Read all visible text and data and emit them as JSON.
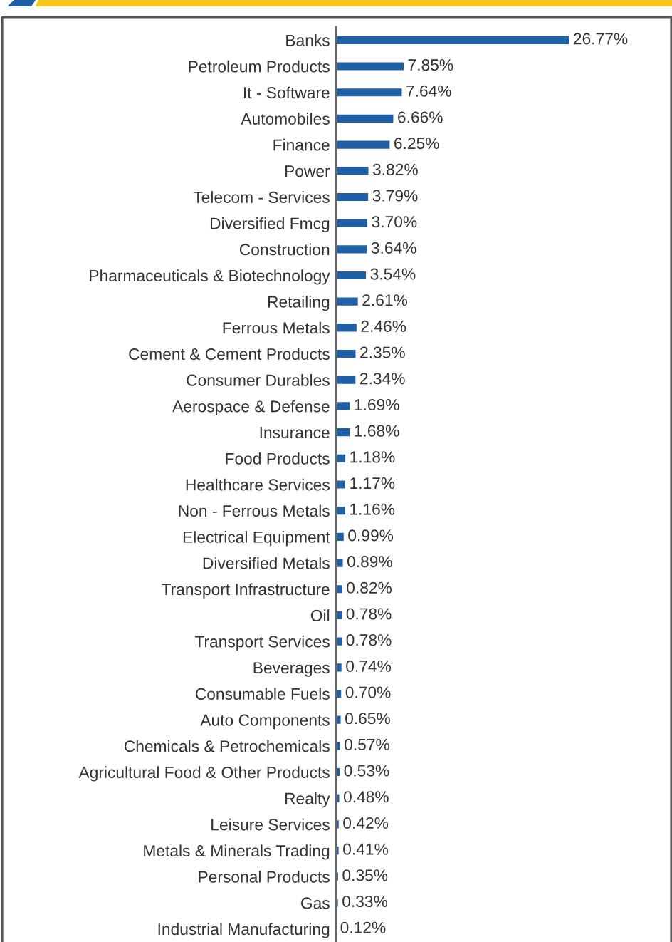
{
  "chart_data": {
    "type": "bar",
    "orientation": "horizontal",
    "color": "#1f5fa6",
    "tick_labels": "y",
    "categories": [
      "Banks",
      "Petroleum Products",
      "It - Software",
      "Automobiles",
      "Finance",
      "Power",
      "Telecom - Services",
      "Diversified Fmcg",
      "Construction",
      "Pharmaceuticals & Biotechnology",
      "Retailing",
      "Ferrous Metals",
      "Cement & Cement Products",
      "Consumer Durables",
      "Aerospace & Defense",
      "Insurance",
      "Food Products",
      "Healthcare Services",
      "Non - Ferrous Metals",
      "Electrical Equipment",
      "Diversified Metals",
      "Transport Infrastructure",
      "Oil",
      "Transport Services",
      "Beverages",
      "Consumable Fuels",
      "Auto Components",
      "Chemicals & Petrochemicals",
      "Agricultural Food & Other Products",
      "Realty",
      "Leisure Services",
      "Metals & Minerals Trading",
      "Personal Products",
      "Gas",
      "Industrial Manufacturing"
    ],
    "values": [
      26.77,
      7.85,
      7.64,
      6.66,
      6.25,
      3.82,
      3.79,
      3.7,
      3.64,
      3.54,
      2.61,
      2.46,
      2.35,
      2.34,
      1.69,
      1.68,
      1.18,
      1.17,
      1.16,
      0.99,
      0.89,
      0.82,
      0.78,
      0.78,
      0.74,
      0.7,
      0.65,
      0.57,
      0.53,
      0.48,
      0.42,
      0.41,
      0.35,
      0.33,
      0.12
    ],
    "value_labels": [
      "26.77%",
      "7.85%",
      "7.64%",
      "6.66%",
      "6.25%",
      "3.82%",
      "3.79%",
      "3.70%",
      "3.64%",
      "3.54%",
      "2.61%",
      "2.46%",
      "2.35%",
      "2.34%",
      "1.69%",
      "1.68%",
      "1.18%",
      "1.17%",
      "1.16%",
      "0.99%",
      "0.89%",
      "0.82%",
      "0.78%",
      "0.78%",
      "0.74%",
      "0.70%",
      "0.65%",
      "0.57%",
      "0.53%",
      "0.48%",
      "0.42%",
      "0.41%",
      "0.35%",
      "0.33%",
      "0.12%"
    ]
  }
}
